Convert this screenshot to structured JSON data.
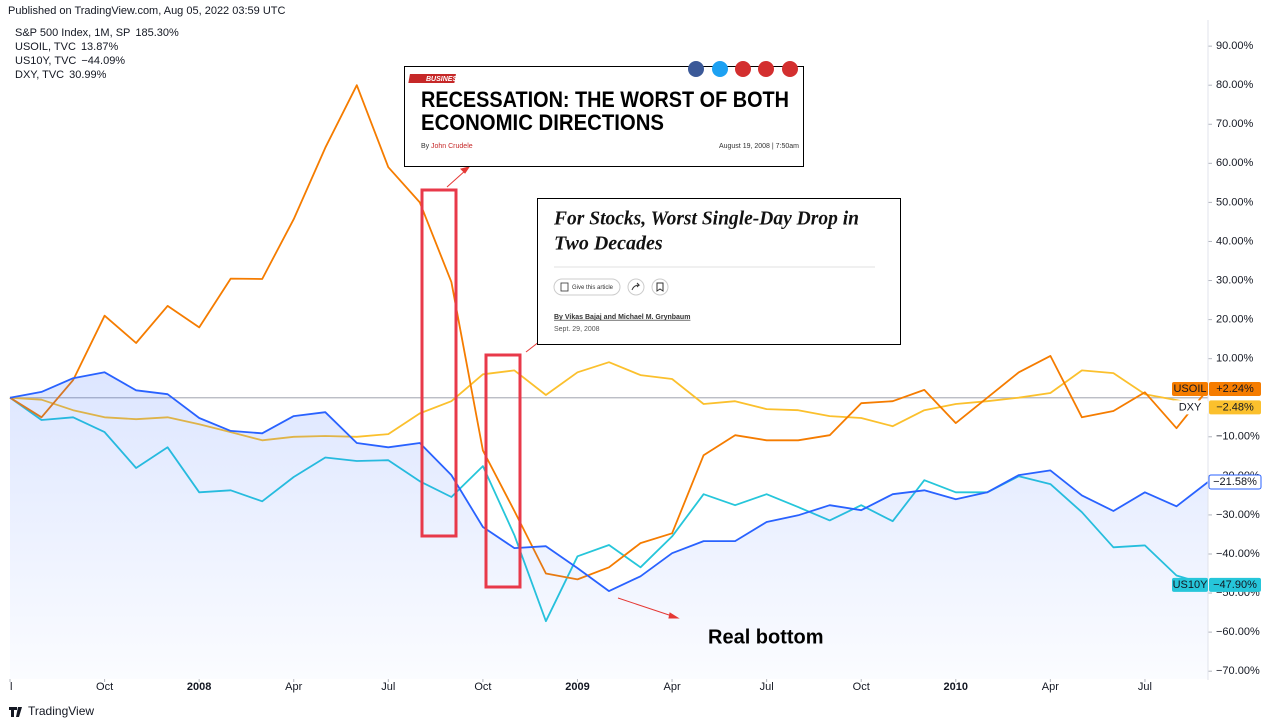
{
  "header": "Published on TradingView.com, Aug 05, 2022 03:59 UTC",
  "footer": "TradingView",
  "note": "Real bottom",
  "article1": {
    "section": "BUSINESS",
    "headline_lines": [
      "RECESSATION: THE WORST OF BOTH",
      "ECONOMIC DIRECTIONS"
    ],
    "by": "By",
    "author": "John Crudele",
    "date": "August 19, 2008 | 7:50am"
  },
  "article2": {
    "headline_lines": [
      "For Stocks, Worst Single-Day Drop in",
      "Two Decades"
    ],
    "share": "Give this article",
    "byline": "By Vikas Bajaj and Michael M. Grynbaum",
    "date": "Sept. 29, 2008"
  },
  "chart_data": {
    "type": "line",
    "categories": [
      "l",
      null,
      null,
      "Oct",
      null,
      null,
      "2008",
      null,
      null,
      "Apr",
      null,
      null,
      "Jul",
      null,
      null,
      "Oct",
      null,
      null,
      "2009",
      null,
      null,
      "Apr",
      null,
      null,
      "Jul",
      null,
      null,
      "Oct",
      null,
      null,
      "2010",
      null,
      null,
      "Apr",
      null,
      null,
      "Jul",
      null,
      null
    ],
    "ylim": [
      -72,
      95
    ],
    "yticks": [
      {
        "value": 90,
        "label": "90.00%"
      },
      {
        "value": 80,
        "label": "80.00%"
      },
      {
        "value": 70,
        "label": "70.00%"
      },
      {
        "value": 60,
        "label": "60.00%"
      },
      {
        "value": 50,
        "label": "50.00%"
      },
      {
        "value": 40,
        "label": "40.00%"
      },
      {
        "value": 30,
        "label": "30.00%"
      },
      {
        "value": 20,
        "label": "20.00%"
      },
      {
        "value": 10,
        "label": "10.00%"
      },
      {
        "value": -10,
        "label": "−10.00%"
      },
      {
        "value": -20,
        "label": "−20.00%"
      },
      {
        "value": -30,
        "label": "−30.00%"
      },
      {
        "value": -40,
        "label": "−40.00%"
      },
      {
        "value": -50,
        "label": "−50.00%"
      },
      {
        "value": -60,
        "label": "−60.00%"
      },
      {
        "value": -70,
        "label": "−70.00%"
      }
    ],
    "baseline": 0,
    "series": [
      {
        "name": "S&P 500 Index, 1M, SP",
        "legend_value": "185.30%",
        "color": "#2962ff",
        "area": true,
        "last_label": "−21.58%",
        "values": [
          0,
          1.5,
          5,
          6.5,
          1.9,
          0.9,
          -5.2,
          -8.5,
          -9.1,
          -4.7,
          -3.7,
          -11.6,
          -12.7,
          -11.6,
          -19.8,
          -33.1,
          -38.5,
          -38,
          -43.6,
          -49.5,
          -45.7,
          -39.8,
          -36.7,
          -36.7,
          -31.8,
          -30.1,
          -27.5,
          -28.8,
          -24.7,
          -23.7,
          -26,
          -24.2,
          -19.8,
          -18.6,
          -25,
          -29,
          -24.2,
          -27.8,
          -21.58
        ]
      },
      {
        "name": "USOIL, TVC",
        "legend_value": "13.87%",
        "color": "#f57c00",
        "tag": "USOIL",
        "last_label": "+2.24%",
        "values": [
          0,
          -5,
          4.5,
          21,
          14,
          23.5,
          18,
          30.5,
          30.4,
          45.7,
          64,
          80,
          59,
          50,
          29.6,
          -13.5,
          -29,
          -45,
          -46.5,
          -43.4,
          -37.2,
          -34.7,
          -14.7,
          -9.6,
          -10.9,
          -10.9,
          -9.6,
          -1.4,
          -0.9,
          2,
          -6.5,
          0,
          6.5,
          10.7,
          -5,
          -3.4,
          1.4,
          -7.8,
          2.24
        ]
      },
      {
        "name": "US10Y, TVC",
        "legend_value": "−44.09%",
        "color": "#26c6da",
        "tag": "US10Y",
        "last_label": "−47.90%",
        "values": [
          0,
          -5.7,
          -5,
          -8.8,
          -18,
          -12.7,
          -24.2,
          -23.7,
          -26.5,
          -20.3,
          -15.3,
          -16.2,
          -16,
          -21.4,
          -25.4,
          -17.5,
          -35.2,
          -57.2,
          -40.6,
          -37.7,
          -43.4,
          -35.5,
          -24.7,
          -27.5,
          -24.7,
          -28,
          -31.4,
          -27.5,
          -31.6,
          -21.1,
          -24.2,
          -24.2,
          -20.1,
          -22.1,
          -29.3,
          -38.3,
          -37.8,
          -45.5,
          -47.9
        ]
      },
      {
        "name": "DXY, TVC",
        "legend_value": "30.99%",
        "color": "#fbc02d",
        "tag": "DXY",
        "last_label": "−2.48%",
        "values": [
          0,
          -0.5,
          -3.2,
          -5,
          -5.5,
          -5,
          -6.8,
          -8.8,
          -10.9,
          -10,
          -9.8,
          -10,
          -9.3,
          -4,
          -0.9,
          6,
          7,
          0.7,
          6.5,
          9.1,
          5.8,
          4.8,
          -1.6,
          -0.9,
          -2.9,
          -3.2,
          -4.7,
          -5.2,
          -7.3,
          -3.2,
          -1.6,
          -0.9,
          0,
          1.2,
          7,
          6.3,
          0.9,
          -0.6,
          -2.48
        ]
      }
    ]
  }
}
